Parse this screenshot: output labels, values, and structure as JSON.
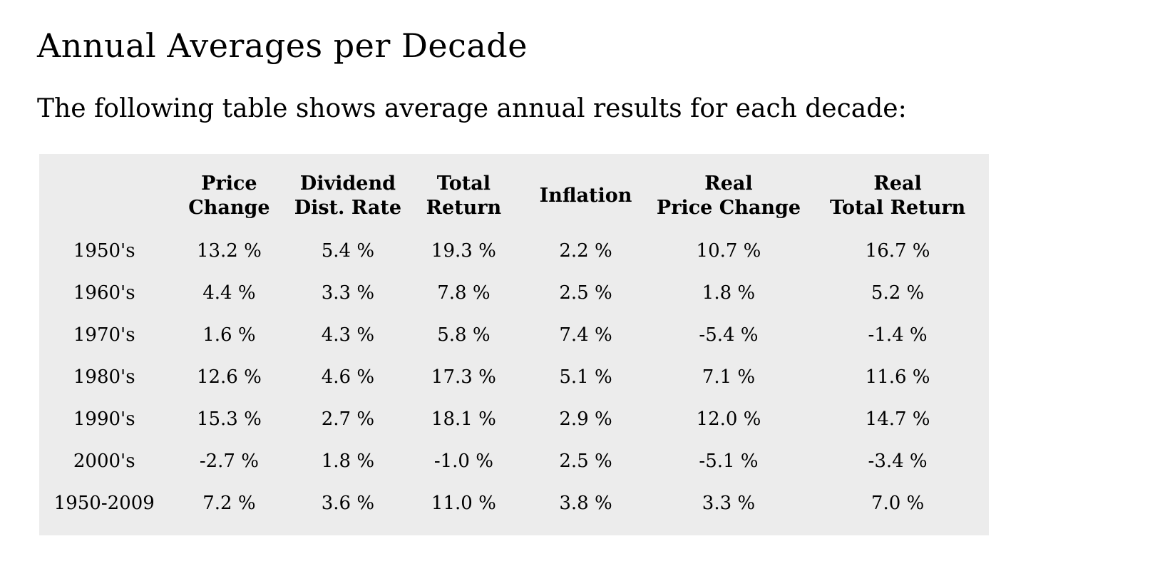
{
  "page": {
    "title": "Annual Averages per Decade",
    "intro": "The following table shows average annual results for each decade:"
  },
  "colors": {
    "page_background": "#ffffff",
    "table_background": "#ececec",
    "text_color": "#000000"
  },
  "table": {
    "headers": [
      {
        "line1": "",
        "line2": ""
      },
      {
        "line1": "Price",
        "line2": "Change"
      },
      {
        "line1": "Dividend",
        "line2": "Dist. Rate"
      },
      {
        "line1": "Total",
        "line2": "Return"
      },
      {
        "line1": "Inflation",
        "line2": ""
      },
      {
        "line1": "Real",
        "line2": "Price Change"
      },
      {
        "line1": "Real",
        "line2": "Total Return"
      }
    ],
    "rows": [
      {
        "label": "1950's",
        "values": [
          "13.2 %",
          "5.4 %",
          "19.3 %",
          "2.2 %",
          "10.7 %",
          "16.7 %"
        ]
      },
      {
        "label": "1960's",
        "values": [
          "4.4 %",
          "3.3 %",
          "7.8 %",
          "2.5 %",
          "1.8 %",
          "5.2 %"
        ]
      },
      {
        "label": "1970's",
        "values": [
          "1.6 %",
          "4.3 %",
          "5.8 %",
          "7.4 %",
          "-5.4 %",
          "-1.4 %"
        ]
      },
      {
        "label": "1980's",
        "values": [
          "12.6 %",
          "4.6 %",
          "17.3 %",
          "5.1 %",
          "7.1 %",
          "11.6 %"
        ]
      },
      {
        "label": "1990's",
        "values": [
          "15.3 %",
          "2.7 %",
          "18.1 %",
          "2.9 %",
          "12.0 %",
          "14.7 %"
        ]
      },
      {
        "label": "2000's",
        "values": [
          "-2.7 %",
          "1.8 %",
          "-1.0 %",
          "2.5 %",
          "-5.1 %",
          "-3.4 %"
        ]
      },
      {
        "label": "1950-2009",
        "values": [
          "7.2 %",
          "3.6 %",
          "11.0 %",
          "3.8 %",
          "3.3 %",
          "7.0 %"
        ]
      }
    ]
  }
}
